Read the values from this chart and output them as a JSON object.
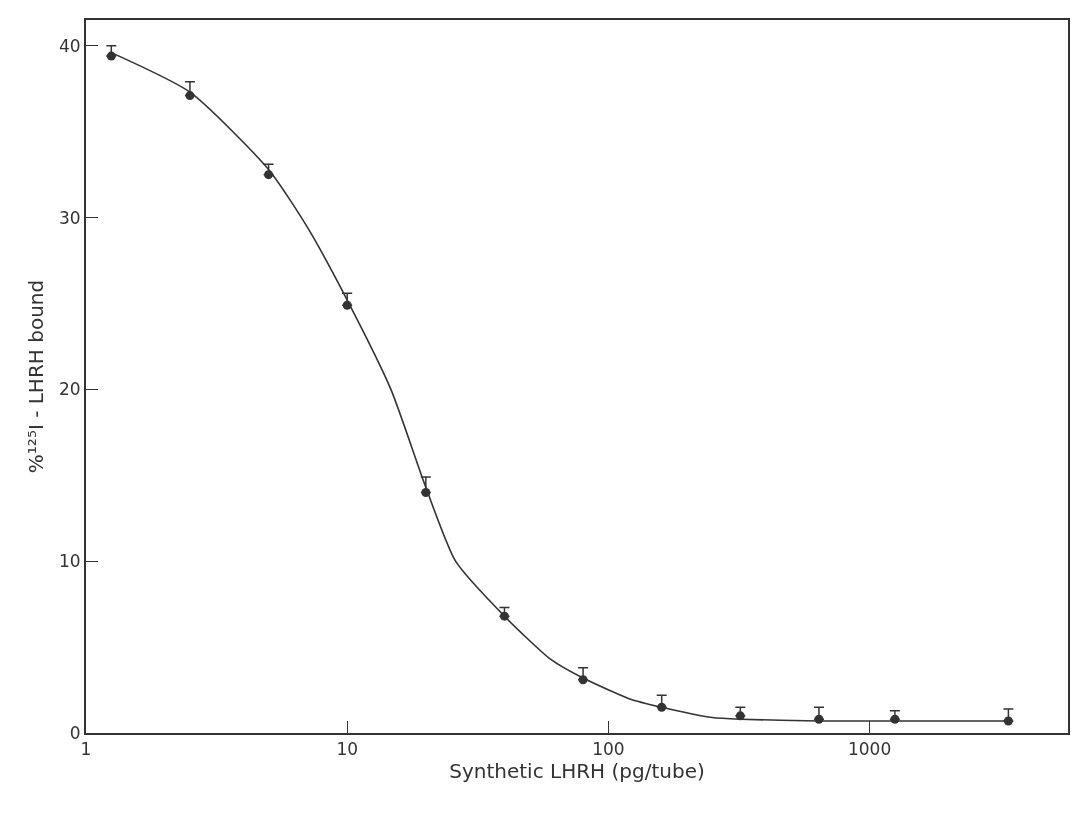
{
  "chart_data": {
    "type": "scatter",
    "xlabel": "Synthetic LHRH (pg/tube)",
    "ylabel": "%¹²⁵I - LHRH bound",
    "log": "x",
    "xlim": [
      1,
      5750
    ],
    "xticks": [
      1,
      10,
      100,
      1000
    ],
    "ylim": [
      0,
      41.5
    ],
    "yticks": [
      0,
      10,
      20,
      30,
      40
    ],
    "grid": false,
    "legend": false,
    "series": [
      {
        "marker": "circle",
        "color": "#333333",
        "x": [
          1.25,
          2.5,
          5,
          10,
          20,
          40,
          80,
          160,
          320,
          640,
          1250,
          3400
        ],
        "values": [
          39.4,
          37.1,
          32.5,
          24.9,
          14.0,
          6.8,
          3.1,
          1.5,
          1.0,
          0.8,
          0.8,
          0.7
        ],
        "errors": [
          [
            39.4,
            40.0
          ],
          [
            37.1,
            37.9
          ],
          [
            32.5,
            33.1
          ],
          [
            24.9,
            25.6
          ],
          [
            14.0,
            14.9
          ],
          [
            6.8,
            7.3
          ],
          [
            3.1,
            3.8
          ],
          [
            1.5,
            2.2
          ],
          [
            1.0,
            1.5
          ],
          [
            0.8,
            1.5
          ],
          [
            0.8,
            1.3
          ],
          [
            0.7,
            1.4
          ]
        ]
      },
      {
        "type": "line",
        "color": "#333333",
        "line_style": "solid",
        "x": [
          1.25,
          2.5,
          5,
          7,
          10,
          14.7,
          20,
          26,
          40,
          60,
          80,
          120,
          160,
          250,
          320,
          640,
          1250,
          3400
        ],
        "values": [
          39.6,
          37.3,
          32.8,
          29.5,
          25.2,
          20,
          14.3,
          10,
          6.8,
          4.3,
          3.2,
          2.0,
          1.5,
          0.9,
          0.8,
          0.7,
          0.7,
          0.7
        ]
      }
    ]
  }
}
